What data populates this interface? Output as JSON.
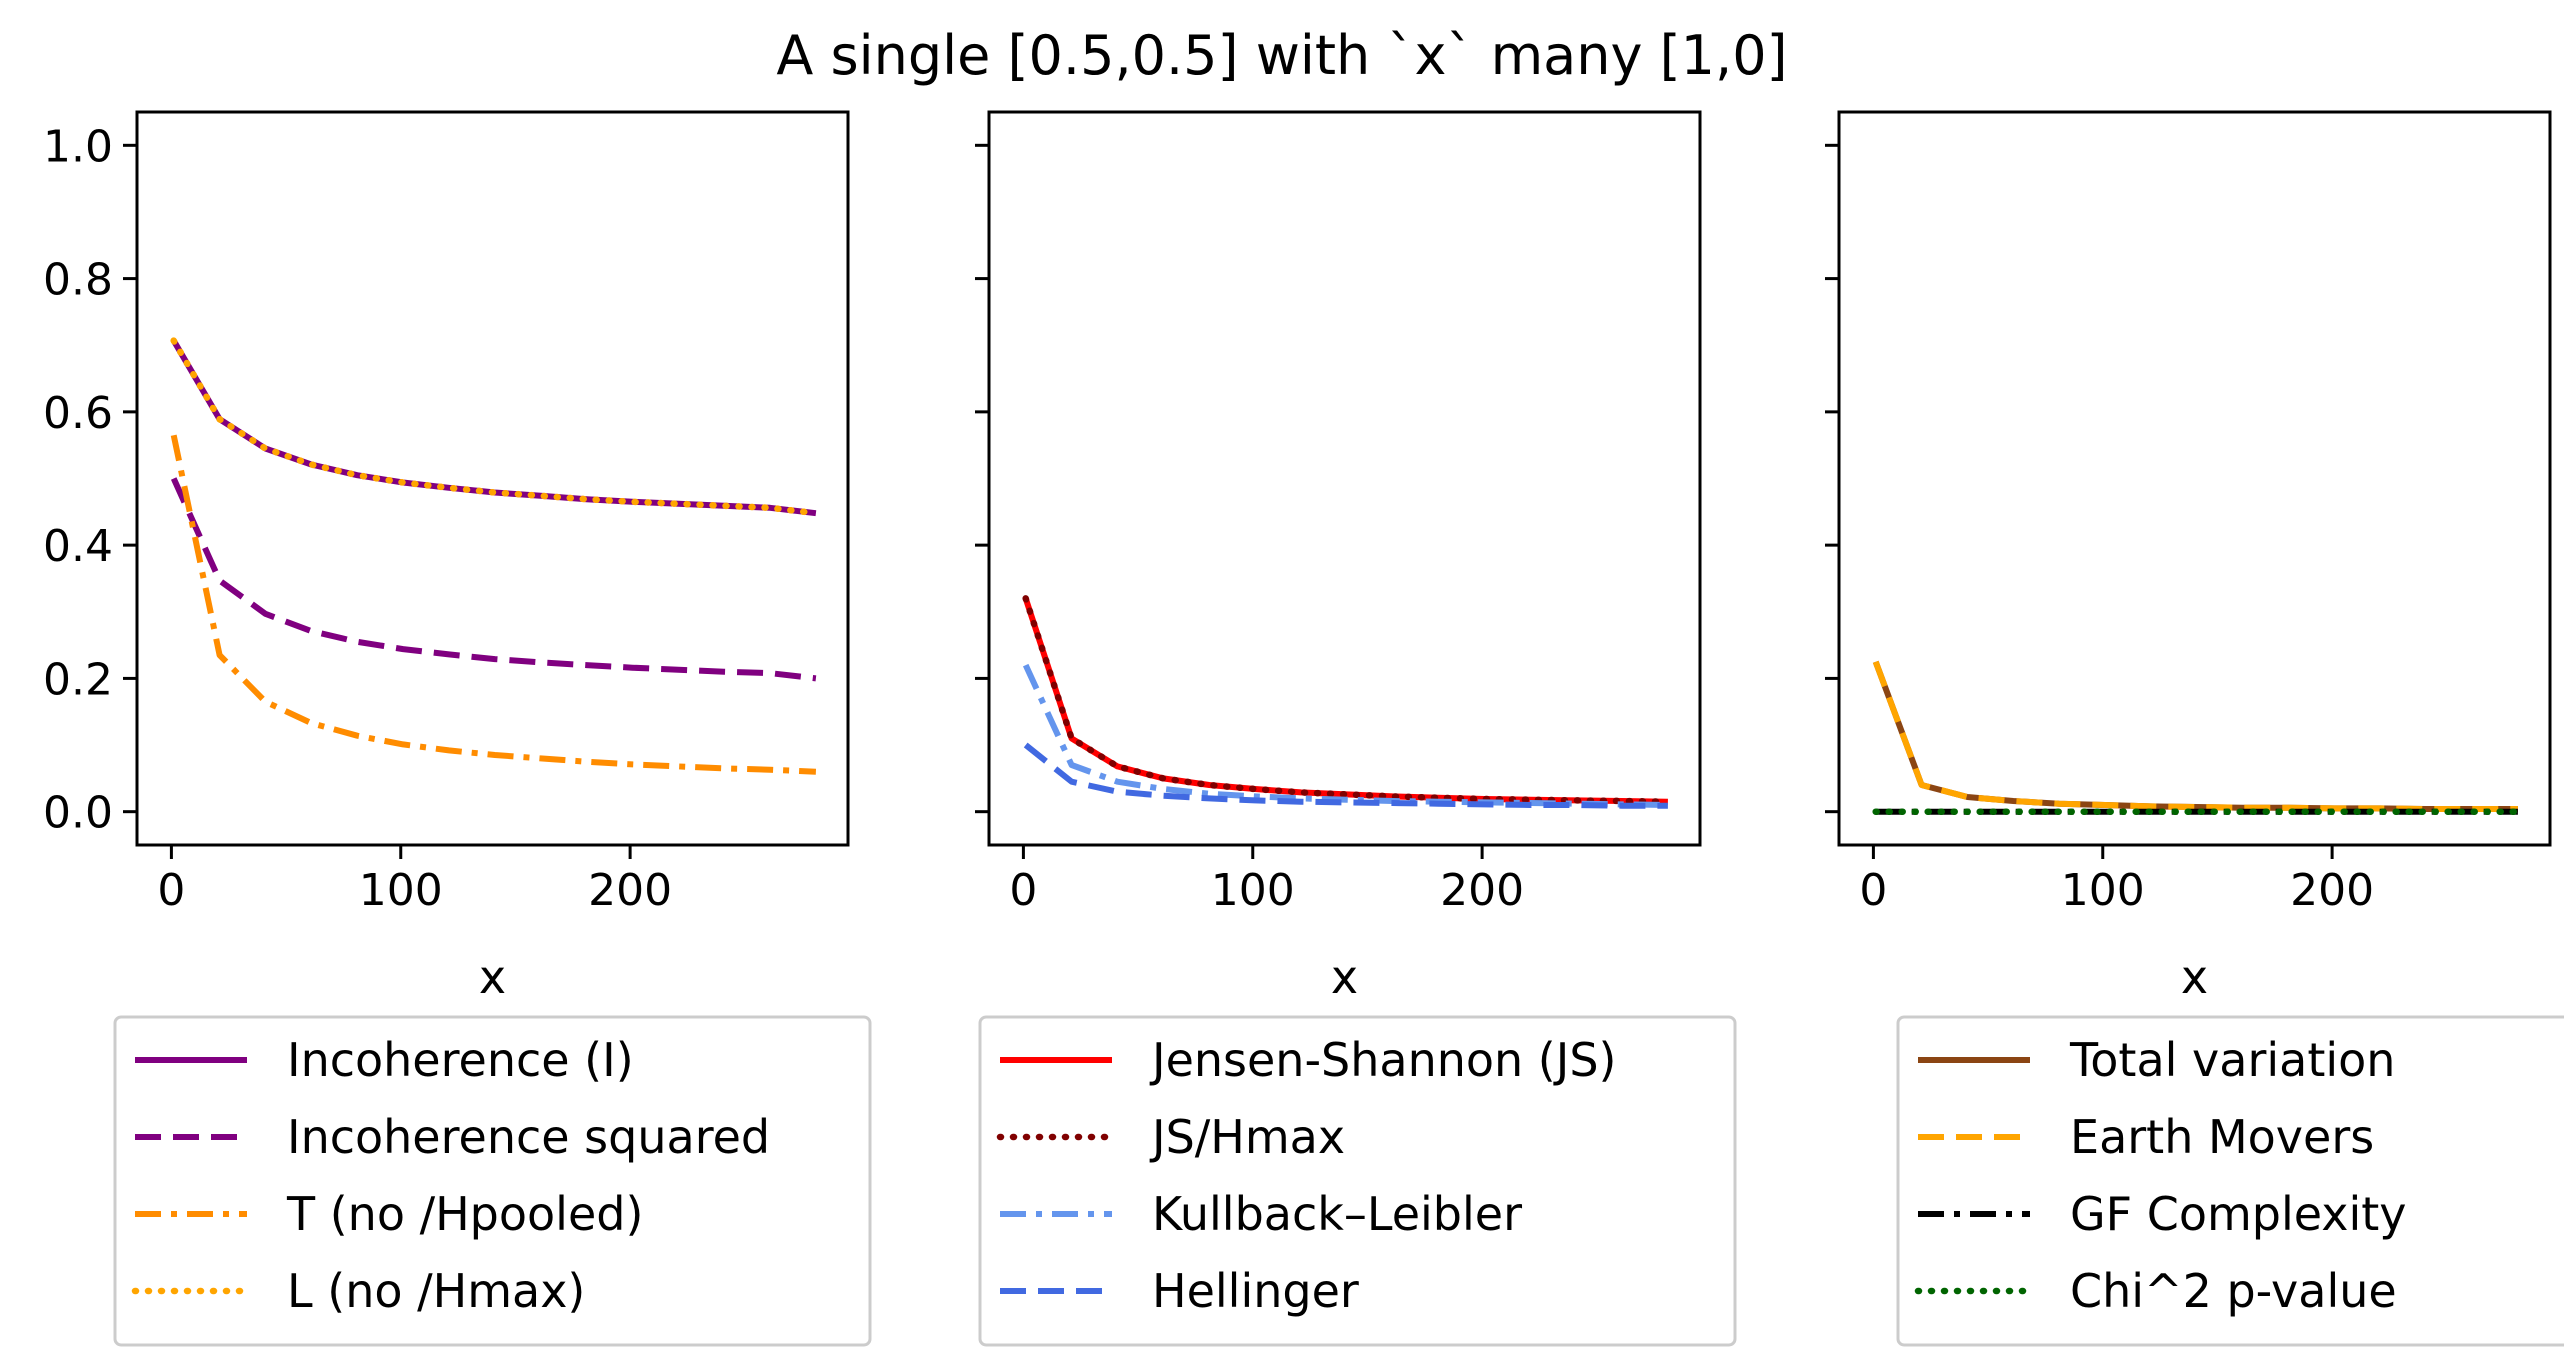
{
  "figure_title": "A single [0.5,0.5] with `x` many [1,0]",
  "chart_data": [
    {
      "type": "line",
      "xlabel": "x",
      "ylabel": "",
      "xlim": [
        -15,
        295
      ],
      "ylim": [
        -0.05,
        1.05
      ],
      "xticks": [
        0,
        100,
        200
      ],
      "xtick_labels": [
        "0",
        "100",
        "200"
      ],
      "yticks": [
        0.0,
        0.2,
        0.4,
        0.6,
        0.8,
        1.0
      ],
      "ytick_labels": [
        "0.0",
        "0.2",
        "0.4",
        "0.6",
        "0.8",
        "1.0"
      ],
      "legend_position": "below",
      "series": [
        {
          "name": "Incoherence (I)",
          "color": "#800080",
          "dash": "solid",
          "x": [
            1,
            21,
            41,
            61,
            81,
            101,
            121,
            141,
            161,
            181,
            201,
            221,
            241,
            261,
            281
          ],
          "y": [
            0.707,
            0.589,
            0.545,
            0.521,
            0.505,
            0.494,
            0.486,
            0.479,
            0.474,
            0.469,
            0.465,
            0.462,
            0.459,
            0.456,
            0.448
          ]
        },
        {
          "name": "Incoherence squared",
          "color": "#800080",
          "dash": "dashed",
          "x": [
            1,
            21,
            41,
            61,
            81,
            101,
            121,
            141,
            161,
            181,
            201,
            221,
            241,
            261,
            281
          ],
          "y": [
            0.5,
            0.347,
            0.297,
            0.271,
            0.255,
            0.244,
            0.236,
            0.229,
            0.224,
            0.22,
            0.216,
            0.213,
            0.21,
            0.208,
            0.2
          ]
        },
        {
          "name": "T (no /Hpooled)",
          "color": "#ff8c00",
          "dash": "dashdot",
          "x": [
            1,
            21,
            41,
            61,
            81,
            101,
            121,
            141,
            161,
            181,
            201,
            221,
            241,
            261,
            281
          ],
          "y": [
            0.565,
            0.235,
            0.165,
            0.133,
            0.114,
            0.101,
            0.092,
            0.085,
            0.08,
            0.075,
            0.071,
            0.068,
            0.065,
            0.063,
            0.06
          ]
        },
        {
          "name": "L (no /Hmax)",
          "color": "#ffa500",
          "dash": "dotted",
          "x": [
            1,
            21,
            41,
            61,
            81,
            101,
            121,
            141,
            161,
            181,
            201,
            221,
            241,
            261,
            281
          ],
          "y": [
            0.707,
            0.589,
            0.545,
            0.521,
            0.505,
            0.494,
            0.486,
            0.479,
            0.474,
            0.469,
            0.465,
            0.462,
            0.459,
            0.456,
            0.448
          ]
        }
      ]
    },
    {
      "type": "line",
      "xlabel": "x",
      "ylabel": "",
      "xlim": [
        -15,
        295
      ],
      "ylim": [
        -0.05,
        1.05
      ],
      "xticks": [
        0,
        100,
        200
      ],
      "xtick_labels": [
        "0",
        "100",
        "200"
      ],
      "yticks": [
        0.0,
        0.2,
        0.4,
        0.6,
        0.8,
        1.0
      ],
      "ytick_labels": [],
      "legend_position": "below",
      "series": [
        {
          "name": "Jensen-Shannon (JS)",
          "color": "#ff0000",
          "dash": "solid",
          "x": [
            1,
            21,
            41,
            61,
            81,
            101,
            121,
            141,
            161,
            181,
            201,
            221,
            241,
            261,
            281
          ],
          "y": [
            0.32,
            0.11,
            0.068,
            0.05,
            0.04,
            0.034,
            0.029,
            0.026,
            0.023,
            0.021,
            0.019,
            0.018,
            0.017,
            0.016,
            0.015
          ]
        },
        {
          "name": "JS/Hmax",
          "color": "#800000",
          "dash": "dotted",
          "x": [
            1,
            21,
            41,
            61,
            81,
            101,
            121,
            141,
            161,
            181,
            201,
            221,
            241,
            261,
            281
          ],
          "y": [
            0.32,
            0.11,
            0.068,
            0.05,
            0.04,
            0.034,
            0.029,
            0.026,
            0.023,
            0.021,
            0.019,
            0.018,
            0.017,
            0.016,
            0.015
          ]
        },
        {
          "name": "Kullback–Leibler",
          "color": "#6495ed",
          "dash": "dashdot",
          "x": [
            1,
            21,
            41,
            61,
            81,
            101,
            121,
            141,
            161,
            181,
            201,
            221,
            241,
            261,
            281
          ],
          "y": [
            0.22,
            0.07,
            0.045,
            0.034,
            0.027,
            0.023,
            0.02,
            0.018,
            0.016,
            0.015,
            0.014,
            0.013,
            0.012,
            0.011,
            0.01
          ]
        },
        {
          "name": "Hellinger",
          "color": "#4169e1",
          "dash": "dashed",
          "x": [
            1,
            21,
            41,
            61,
            81,
            101,
            121,
            141,
            161,
            181,
            201,
            221,
            241,
            261,
            281
          ],
          "y": [
            0.1,
            0.045,
            0.03,
            0.024,
            0.02,
            0.017,
            0.015,
            0.014,
            0.013,
            0.012,
            0.011,
            0.01,
            0.01,
            0.009,
            0.009
          ]
        }
      ]
    },
    {
      "type": "line",
      "xlabel": "x",
      "ylabel": "",
      "xlim": [
        -15,
        295
      ],
      "ylim": [
        -0.05,
        1.05
      ],
      "xticks": [
        0,
        100,
        200
      ],
      "xtick_labels": [
        "0",
        "100",
        "200"
      ],
      "yticks": [
        0.0,
        0.2,
        0.4,
        0.6,
        0.8,
        1.0
      ],
      "ytick_labels": [],
      "legend_position": "below",
      "series": [
        {
          "name": "Total variation",
          "color": "#8b4513",
          "dash": "solid",
          "x": [
            1,
            21,
            41,
            61,
            81,
            101,
            121,
            141,
            161,
            181,
            201,
            221,
            241,
            261,
            281
          ],
          "y": [
            0.225,
            0.04,
            0.022,
            0.016,
            0.012,
            0.01,
            0.008,
            0.007,
            0.006,
            0.006,
            0.005,
            0.005,
            0.004,
            0.004,
            0.004
          ]
        },
        {
          "name": "Earth Movers",
          "color": "#ffa500",
          "dash": "dashed",
          "x": [
            1,
            21,
            41,
            61,
            81,
            101,
            121,
            141,
            161,
            181,
            201,
            221,
            241,
            261,
            281
          ],
          "y": [
            0.225,
            0.04,
            0.022,
            0.016,
            0.012,
            0.01,
            0.008,
            0.007,
            0.006,
            0.006,
            0.005,
            0.005,
            0.004,
            0.004,
            0.004
          ]
        },
        {
          "name": "GF Complexity",
          "color": "#000000",
          "dash": "dashdot",
          "x": [
            1,
            21,
            41,
            61,
            81,
            101,
            121,
            141,
            161,
            181,
            201,
            221,
            241,
            261,
            281
          ],
          "y": [
            0.0,
            0.0,
            0.0,
            0.0,
            0.0,
            0.0,
            0.0,
            0.0,
            0.0,
            0.0,
            0.0,
            0.0,
            0.0,
            0.0,
            0.0
          ]
        },
        {
          "name": "Chi^2 p-value",
          "color": "#006400",
          "dash": "dotted",
          "x": [
            1,
            21,
            41,
            61,
            81,
            101,
            121,
            141,
            161,
            181,
            201,
            221,
            241,
            261,
            281
          ],
          "y": [
            0.0,
            0.0,
            0.0,
            0.0,
            0.0,
            0.0,
            0.0,
            0.0,
            0.0,
            0.0,
            0.0,
            0.0,
            0.0,
            0.0,
            0.0
          ]
        }
      ]
    }
  ]
}
